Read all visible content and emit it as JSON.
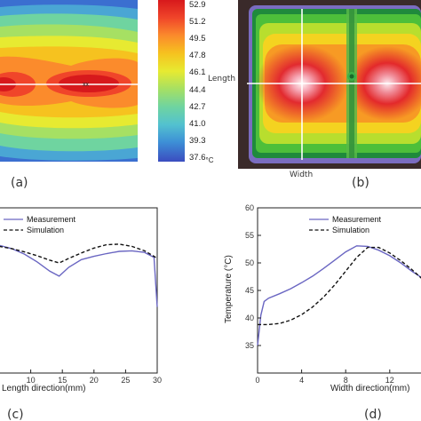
{
  "panels": {
    "a": {
      "label": "(a)",
      "marker": "xx",
      "colorbar": {
        "ticks": [
          "52.9",
          "51.2",
          "49.5",
          "47.8",
          "46.1",
          "44.4",
          "42.7",
          "41.0",
          "39.3",
          "37.6"
        ],
        "unit": "°C",
        "colors": [
          "#d7191c",
          "#f0452a",
          "#fb8b2c",
          "#f6c21f",
          "#e7ea31",
          "#a6e063",
          "#6fd4a0",
          "#53c2cf",
          "#3d8fd6",
          "#3b4cc0"
        ]
      }
    },
    "b": {
      "label": "(b)",
      "length_label": "Length",
      "width_label": "Width"
    },
    "c": {
      "label": "(c)",
      "xlabel": "Length direction(mm)",
      "xticks": [
        "10",
        "15",
        "20",
        "25",
        "30"
      ],
      "legend": [
        "Measurement",
        "Simulation"
      ]
    },
    "d": {
      "label": "(d)",
      "xlabel": "Width direction(mm)",
      "ylabel": "Temperature (°C)",
      "xticks": [
        "0",
        "4",
        "8",
        "12"
      ],
      "yticks": [
        "35",
        "40",
        "45",
        "50",
        "55",
        "60"
      ],
      "legend": [
        "Measurement",
        "Simulation"
      ]
    }
  },
  "chart_data": [
    {
      "type": "line",
      "panel": "c",
      "xlabel": "Length direction(mm)",
      "ylabel": "",
      "xlim": [
        5,
        30
      ],
      "ylim": [
        30,
        60
      ],
      "series": [
        {
          "name": "Measurement",
          "style": "solid",
          "color": "#6a66c2",
          "x": [
            5,
            7,
            9,
            11,
            13,
            14.5,
            16,
            18,
            20,
            22,
            24,
            26,
            28,
            29.5,
            30
          ],
          "y": [
            53.2,
            52.6,
            51.6,
            50.2,
            48.5,
            47.6,
            49.2,
            50.6,
            51.2,
            51.7,
            52.1,
            52.2,
            51.9,
            51.0,
            42.0
          ]
        },
        {
          "name": "Simulation",
          "style": "dashed",
          "color": "#111111",
          "x": [
            5,
            7,
            9,
            11,
            13,
            14.5,
            16,
            18,
            20,
            22,
            24,
            26,
            28,
            29.5,
            30
          ],
          "y": [
            53.0,
            52.6,
            52.0,
            51.3,
            50.5,
            50.0,
            50.8,
            51.8,
            52.7,
            53.3,
            53.4,
            53.0,
            52.2,
            51.2,
            50.8
          ]
        }
      ]
    },
    {
      "type": "line",
      "panel": "d",
      "xlabel": "Width direction(mm)",
      "ylabel": "Temperature (°C)",
      "xlim": [
        0,
        15
      ],
      "ylim": [
        30,
        60
      ],
      "series": [
        {
          "name": "Measurement",
          "style": "solid",
          "color": "#6a66c2",
          "x": [
            0,
            0.3,
            0.6,
            1,
            2,
            3,
            4,
            5,
            6,
            7,
            8,
            9,
            10,
            11,
            12,
            13,
            14,
            15
          ],
          "y": [
            35.0,
            40.5,
            43.0,
            43.6,
            44.4,
            45.3,
            46.4,
            47.6,
            49.0,
            50.5,
            52.0,
            53.1,
            53.0,
            52.3,
            51.3,
            50.0,
            48.5,
            47.2
          ]
        },
        {
          "name": "Simulation",
          "style": "dashed",
          "color": "#111111",
          "x": [
            0,
            1,
            2,
            3,
            4,
            5,
            6,
            7,
            8,
            9,
            10,
            11,
            12,
            13,
            14,
            15
          ],
          "y": [
            38.8,
            38.8,
            39.0,
            39.6,
            40.6,
            42.0,
            43.8,
            46.0,
            48.5,
            51.0,
            52.8,
            52.8,
            51.8,
            50.4,
            48.8,
            47.0
          ]
        }
      ]
    }
  ]
}
